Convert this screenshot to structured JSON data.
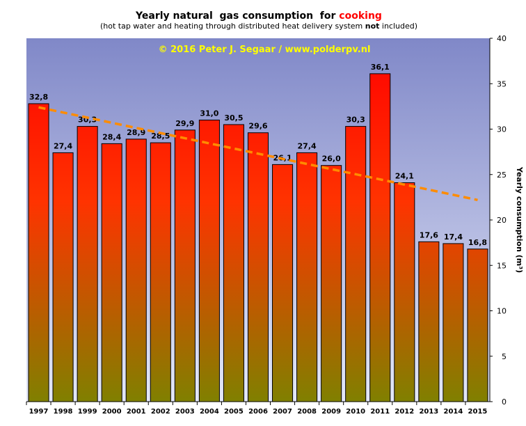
{
  "chart_data": {
    "type": "bar",
    "title_prefix": "Yearly natural  gas consumption  for ",
    "title_highlight": "cooking",
    "subtitle_pre": "(hot tap water and heating through distributed heat delivery system ",
    "subtitle_bold": "not",
    "subtitle_post": " included)",
    "copyright": "© 2016  Peter  J. Segaar  /  www.polderpv.nl",
    "ylabel": "Yearly consumption (m³)",
    "xlabel": "",
    "ylim": [
      0,
      40
    ],
    "yticks": [
      "0",
      "5",
      "10",
      "15",
      "20",
      "25",
      "30",
      "35",
      "40"
    ],
    "categories": [
      "1997",
      "1998",
      "1999",
      "2000",
      "2001",
      "2002",
      "2003",
      "2004",
      "2005",
      "2006",
      "2007",
      "2008",
      "2009",
      "2010",
      "2011",
      "2012",
      "2013",
      "2014",
      "2015"
    ],
    "values": [
      32.8,
      27.4,
      30.3,
      28.4,
      28.9,
      28.5,
      29.9,
      31.0,
      30.5,
      29.6,
      26.1,
      27.4,
      26.0,
      30.3,
      36.1,
      24.1,
      17.6,
      17.4,
      16.8
    ],
    "value_labels": [
      "32,8",
      "27,4",
      "30,3",
      "28,4",
      "28,9",
      "28,5",
      "29,9",
      "31,0",
      "30,5",
      "29,6",
      "26,1",
      "27,4",
      "26,0",
      "30,3",
      "36,1",
      "24,1",
      "17,6",
      "17,4",
      "16,8"
    ],
    "trendline": {
      "x_start": "1997",
      "y_start": 32.4,
      "x_end": "2015",
      "y_end": 22.2
    },
    "grid": false,
    "legend": "none",
    "colors": {
      "bar_top": "#ff0000",
      "bar_bottom": "#808000",
      "background_top": "#8088c8",
      "background_bottom": "#e4e8f8",
      "trendline": "#ff8c00",
      "copyright": "#ffff00"
    }
  }
}
